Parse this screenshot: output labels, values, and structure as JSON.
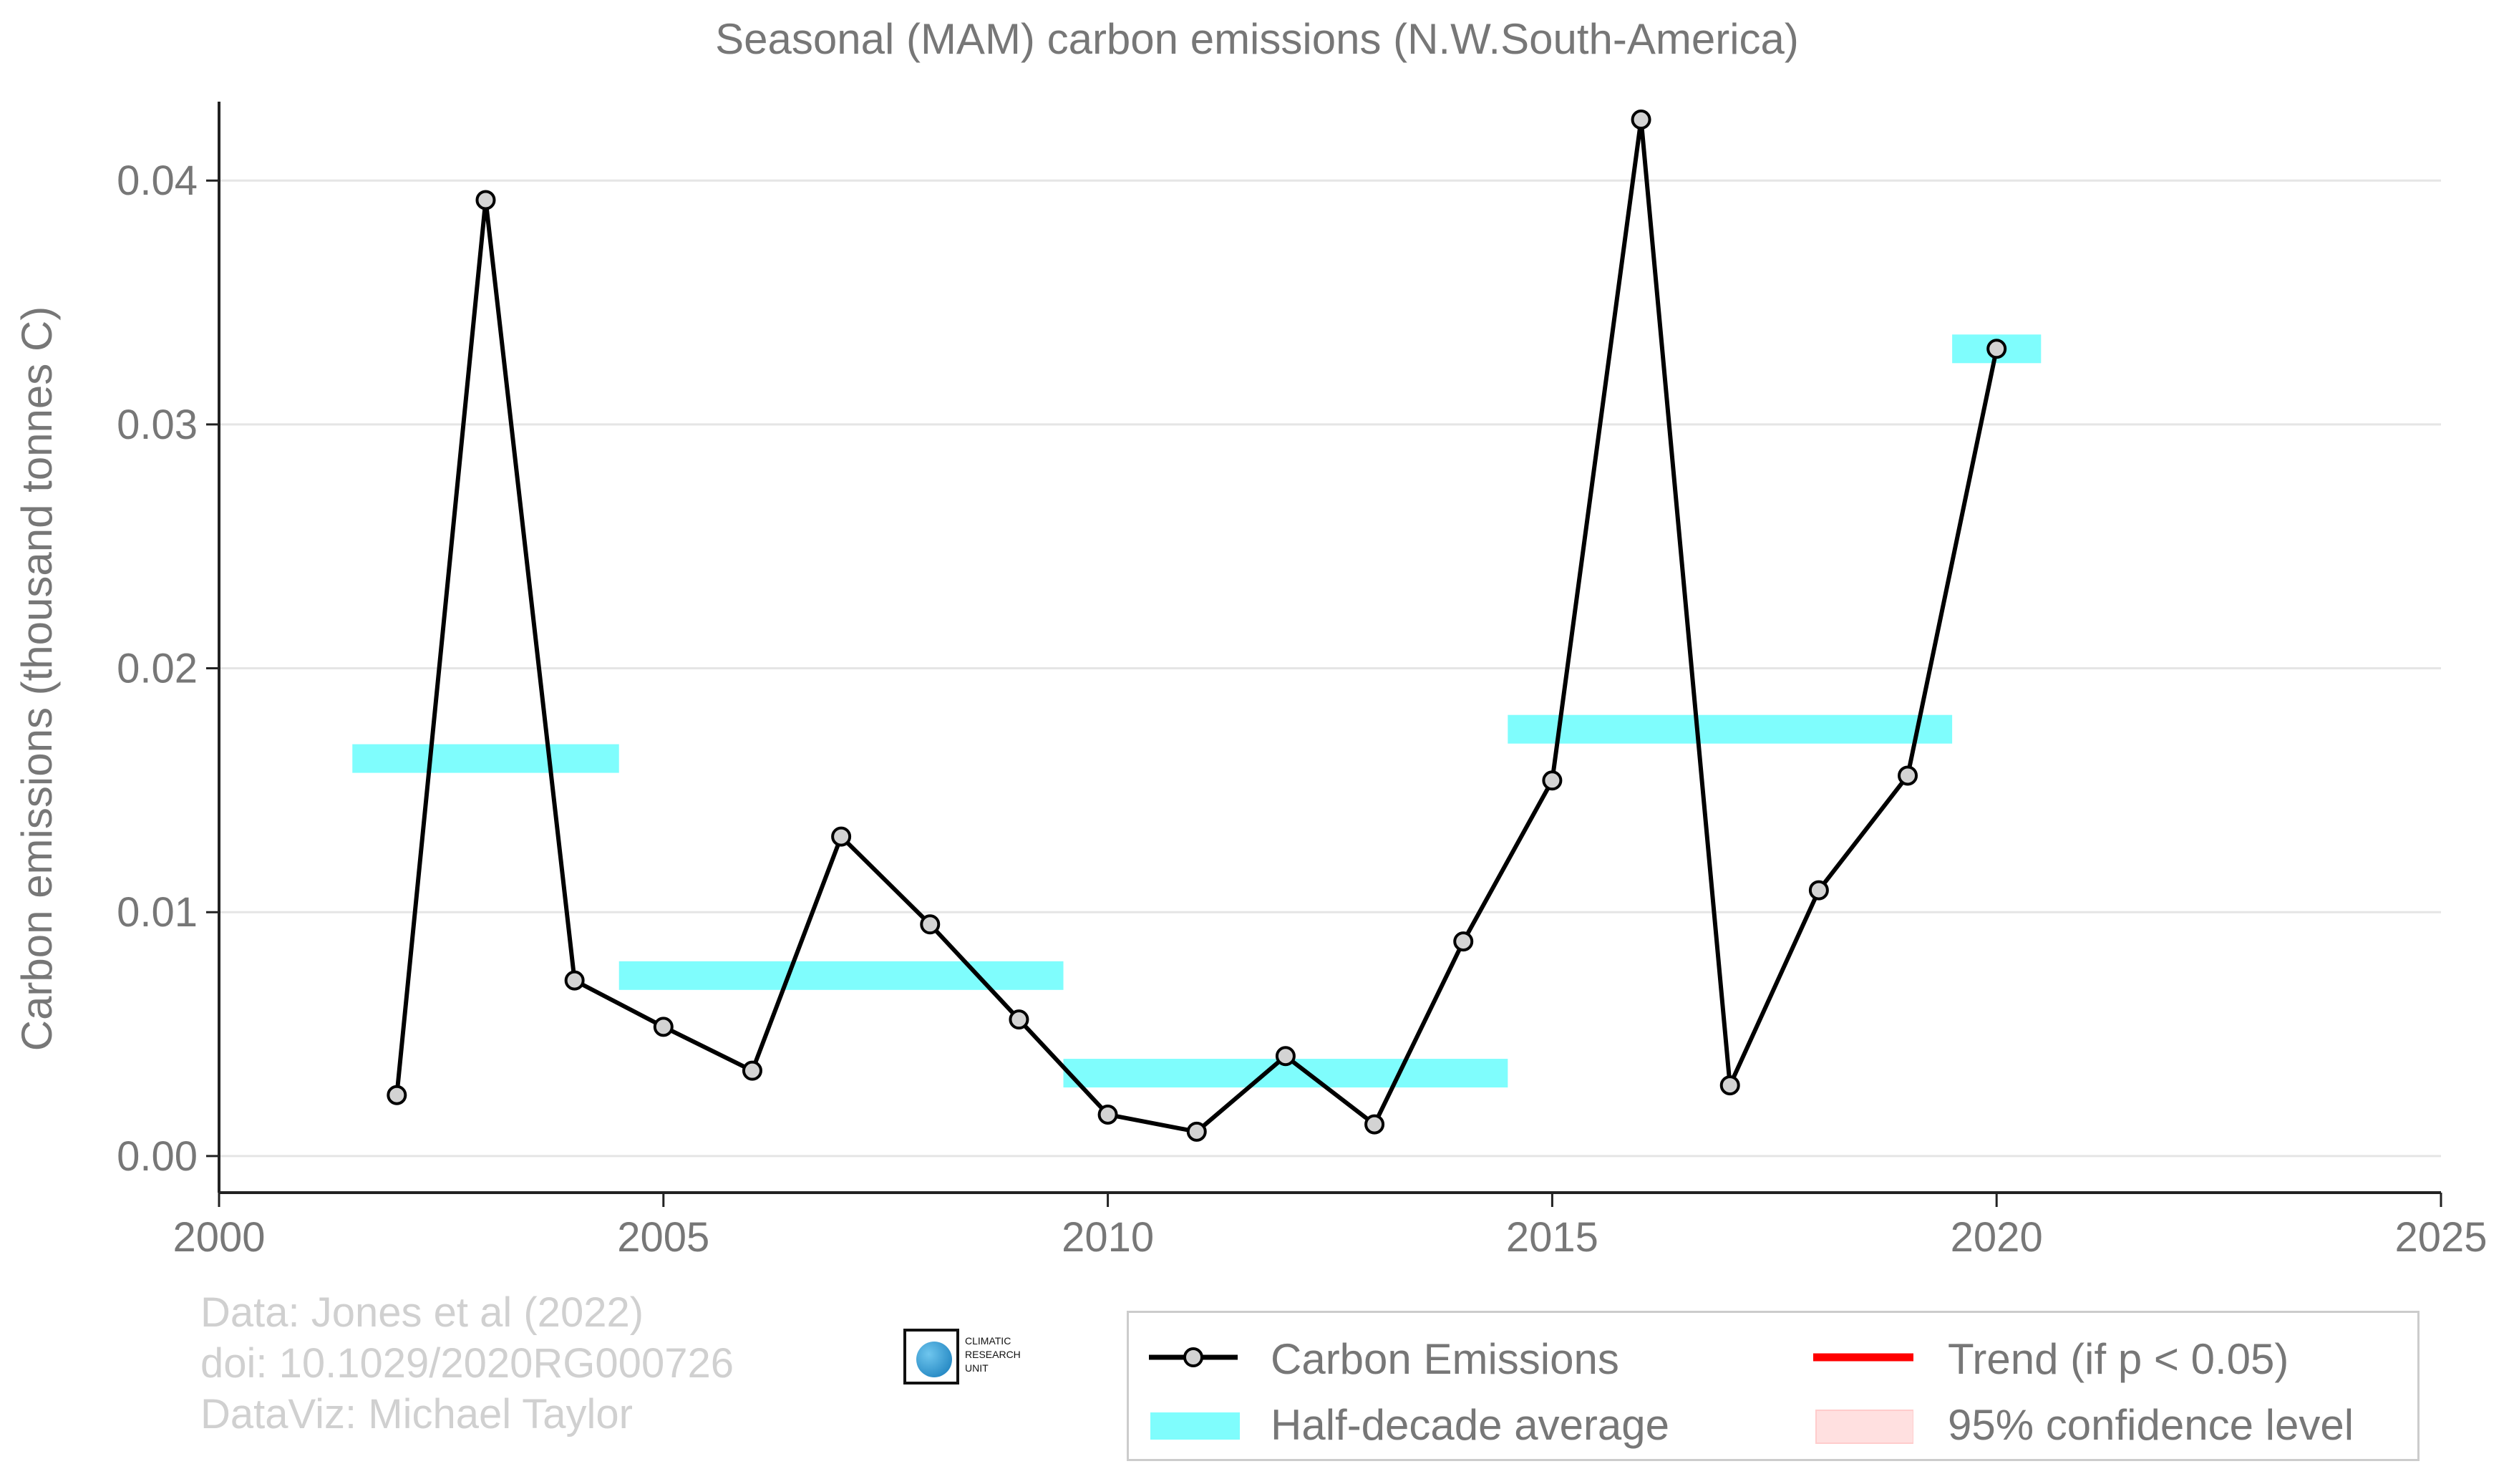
{
  "chart_data": {
    "type": "line",
    "title": "Seasonal (MAM) carbon emissions (N.W.South-America)",
    "ylabel": "Carbon emissions (thousand tonnes C)",
    "xlabel": "",
    "xlim": [
      2000,
      2025
    ],
    "ylim": [
      -0.0015,
      0.043
    ],
    "x_ticks": [
      2000,
      2005,
      2010,
      2015,
      2020,
      2025
    ],
    "y_ticks": [
      0.0,
      0.01,
      0.02,
      0.03,
      0.04
    ],
    "y_tick_labels": [
      "0.00",
      "0.01",
      "0.02",
      "0.03",
      "0.04"
    ],
    "grid": "horizontal",
    "series": [
      {
        "name": "Carbon Emissions",
        "color": "#000000",
        "marker_fill": "#d3d3d3",
        "x": [
          2002,
          2003,
          2004,
          2005,
          2006,
          2007,
          2008,
          2009,
          2010,
          2011,
          2012,
          2013,
          2014,
          2015,
          2016,
          2017,
          2018,
          2019,
          2020
        ],
        "y": [
          0.0025,
          0.0392,
          0.0072,
          0.0053,
          0.0035,
          0.0131,
          0.0095,
          0.0056,
          0.0017,
          0.001,
          0.0041,
          0.0013,
          0.0088,
          0.0154,
          0.0425,
          0.0029,
          0.0109,
          0.0156,
          0.0331
        ]
      }
    ],
    "half_decade_average": {
      "name": "Half-decade average",
      "color": "#7ffdfd",
      "segments": [
        {
          "x_start": 2001.5,
          "x_end": 2004.5,
          "y": 0.0163
        },
        {
          "x_start": 2004.5,
          "x_end": 2009.5,
          "y": 0.0074
        },
        {
          "x_start": 2009.5,
          "x_end": 2014.5,
          "y": 0.0034
        },
        {
          "x_start": 2014.5,
          "x_end": 2019.5,
          "y": 0.0175
        },
        {
          "x_start": 2019.5,
          "x_end": 2020.5,
          "y": 0.0331
        }
      ]
    },
    "legend": {
      "placement": "bottom-right",
      "entries": [
        {
          "label": "Carbon Emissions",
          "kind": "line-marker",
          "color": "#000000"
        },
        {
          "label": "Trend (if p < 0.05)",
          "kind": "line",
          "color": "#ff0000"
        },
        {
          "label": "Half-decade average",
          "kind": "band",
          "color": "#7ffdfd"
        },
        {
          "label": "95% confidence level",
          "kind": "band",
          "color": "#ffe0e0"
        }
      ]
    }
  },
  "credits": {
    "line1": "Data: Jones et al (2022)",
    "line2": "doi: 10.1029/2020RG000726",
    "line3": "DataViz: Michael Taylor"
  },
  "logo": {
    "line1": "CLIMATIC",
    "line2": "RESEARCH",
    "line3": "UNIT"
  },
  "colors": {
    "axis_text": "#777777",
    "grid": "#e5e5e5",
    "axis_line": "#222222"
  }
}
